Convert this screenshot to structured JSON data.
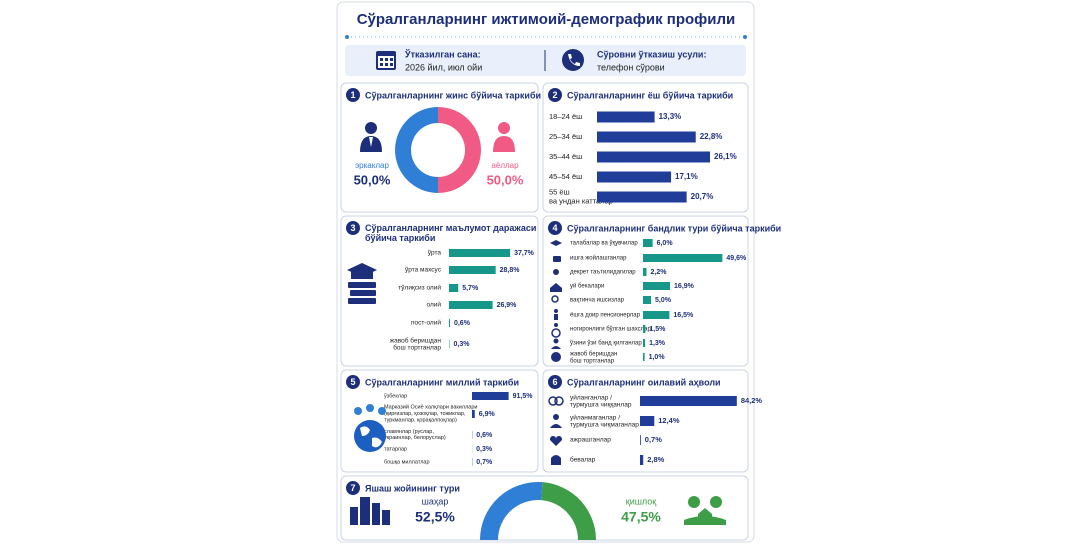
{
  "title": "Сўралганларнинг ижтимоий-демографик профили",
  "info": {
    "date_label": "Ўтказилган сана:",
    "date": "2026 йил, июл ойи",
    "method_label": "Сўровни ўтказиш усули:",
    "method": "телефон сўрови"
  },
  "chart_data": [
    {
      "type": "pie",
      "number": 1,
      "title": "Сўралганларнинг жинс бўйича таркиби",
      "categories": [
        "эркаклар",
        "аёллар"
      ],
      "values": [
        50,
        50
      ],
      "value_labels": [
        "50,0%",
        "50,0%"
      ],
      "colors": [
        "#2f7fd6",
        "#f15a84"
      ]
    },
    {
      "type": "bar",
      "number": 2,
      "title": "Сўралганларнинг ёш бўйича таркиби",
      "categories": [
        "18–24 ёш",
        "25–34 ёш",
        "35–44 ёш",
        "45–54 ёш",
        "55 ёш\nва ундан катталар"
      ],
      "values": [
        13.3,
        22.8,
        26.1,
        17.1,
        20.7
      ],
      "value_labels": [
        "13,3%",
        "22,8%",
        "26,1%",
        "17,1%",
        "20,7%"
      ],
      "color": "#1f3d99"
    },
    {
      "type": "bar",
      "number": 3,
      "title": "Сўралганларнинг маълумот даражаси\nбўйича таркиби",
      "categories": [
        "ўрта",
        "ўрта махсус",
        "тўлиқсиз олий",
        "олий",
        "пост-олий",
        "жавоб беришдан\nбош тортганлар"
      ],
      "values": [
        37.7,
        28.8,
        5.7,
        26.9,
        0.6,
        0.3
      ],
      "value_labels": [
        "37,7%",
        "28,8%",
        "5,7%",
        "26,9%",
        "0,6%",
        "0,3%"
      ],
      "color": "#17968a"
    },
    {
      "type": "bar",
      "number": 4,
      "title": "Сўралганларнинг бандлик тури бўйича таркиби",
      "categories": [
        "талабалар ва ўқувчилар",
        "ишга жойлашганлар",
        "декрет таътилидагилар",
        "уй бекалари",
        "вақтинча ишсизлар",
        "ёшга доир пенсионерлар",
        "ногиронлиги бўлган шахслар",
        "ўзини ўзи банд қилганлар",
        "жавоб беришдан\nбош тортганлар"
      ],
      "values": [
        6.0,
        49.6,
        2.2,
        16.9,
        5.0,
        16.5,
        1.5,
        1.3,
        1.0
      ],
      "value_labels": [
        "6,0%",
        "49,6%",
        "2,2%",
        "16,9%",
        "5,0%",
        "16,5%",
        "1,5%",
        "1,3%",
        "1,0%"
      ],
      "color": "#17968a"
    },
    {
      "type": "bar",
      "number": 5,
      "title": "Сўралганларнинг миллий таркиби",
      "categories": [
        "ўзбеклар",
        "Марказий Осиё халқлари вакиллари\n(қирғизлар, қозоқлар, тожиклар,\nтуркманлар, қорақалпоқлар)",
        "славянлар (руслар,\nукраинлар, белоруслар)",
        "татарлар",
        "бошқа миллатлар"
      ],
      "values": [
        91.5,
        6.9,
        0.6,
        0.3,
        0.7
      ],
      "value_labels": [
        "91,5%",
        "6,9%",
        "0,6%",
        "0,3%",
        "0,7%"
      ],
      "color": "#1f3d99"
    },
    {
      "type": "bar",
      "number": 6,
      "title": "Сўралганларнинг оилавий аҳволи",
      "categories": [
        "уйланганлар /\nтурмушга чиққанлар",
        "уйланмаганлар /\nтурмушга чиқмаганлар",
        "ажрашганлар",
        "бевалар"
      ],
      "values": [
        84.2,
        12.4,
        0.7,
        2.8
      ],
      "value_labels": [
        "84,2%",
        "12,4%",
        "0,7%",
        "2,8%"
      ],
      "color": "#1f3d99"
    },
    {
      "type": "gauge",
      "number": 7,
      "title": "Яшаш жойининг тури",
      "categories": [
        "шаҳар",
        "қишлоқ"
      ],
      "values": [
        52.5,
        47.5
      ],
      "value_labels": [
        "52,5%",
        "47,5%"
      ],
      "colors": [
        "#2f7fd6",
        "#3e9e48"
      ]
    }
  ]
}
